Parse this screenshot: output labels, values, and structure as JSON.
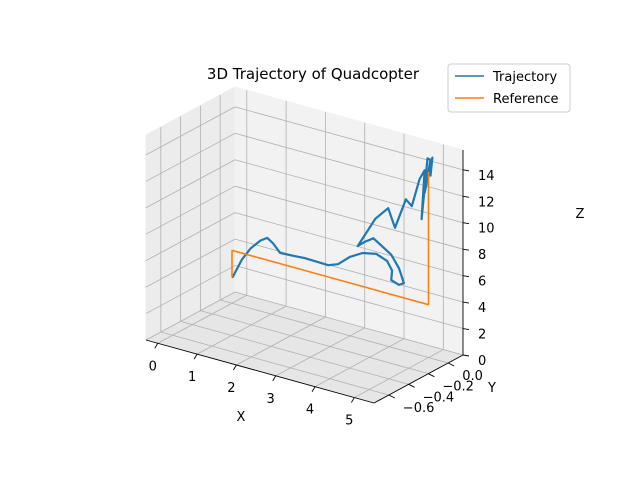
{
  "chart_data": {
    "type": "line",
    "projection": "3d",
    "title": "3D Trajectory of Quadcopter",
    "xlabel": "X",
    "ylabel": "Y",
    "zlabel": "Z",
    "xlim": [
      -0.3,
      5.5
    ],
    "ylim": [
      -0.75,
      0.15
    ],
    "zlim": [
      0,
      15.5
    ],
    "xticks": [
      0,
      1,
      2,
      3,
      4,
      5
    ],
    "xtick_labels": [
      "0",
      "1",
      "2",
      "3",
      "4",
      "5"
    ],
    "yticks": [
      -0.6,
      -0.4,
      -0.2,
      0.0
    ],
    "ytick_labels": [
      "−0.6",
      "−0.4",
      "−0.2",
      "0.0"
    ],
    "zticks": [
      0,
      2,
      4,
      6,
      8,
      10,
      12,
      14
    ],
    "ztick_labels": [
      "0",
      "2",
      "4",
      "6",
      "8",
      "10",
      "12",
      "14"
    ],
    "grid": true,
    "legend": "top-right",
    "series": [
      {
        "name": "Trajectory",
        "color": "#1f77b4",
        "points": [
          [
            0.02,
            0.0,
            2.0
          ],
          [
            0.25,
            0.0,
            3.5
          ],
          [
            0.5,
            -0.01,
            4.6
          ],
          [
            0.75,
            -0.01,
            5.4
          ],
          [
            0.95,
            -0.02,
            5.8
          ],
          [
            1.1,
            -0.02,
            5.5
          ],
          [
            1.3,
            -0.03,
            5.0
          ],
          [
            1.6,
            -0.04,
            5.1
          ],
          [
            2.0,
            -0.06,
            5.3
          ],
          [
            2.4,
            -0.08,
            5.4
          ],
          [
            2.7,
            -0.1,
            5.5
          ],
          [
            3.0,
            -0.12,
            5.9
          ],
          [
            3.3,
            -0.12,
            6.7
          ],
          [
            3.6,
            -0.11,
            7.2
          ],
          [
            3.9,
            -0.09,
            7.3
          ],
          [
            4.1,
            -0.06,
            6.8
          ],
          [
            4.15,
            -0.03,
            6.0
          ],
          [
            4.1,
            -0.02,
            5.2
          ],
          [
            4.3,
            -0.02,
            5.0
          ],
          [
            4.45,
            -0.03,
            5.3
          ],
          [
            4.4,
            -0.06,
            6.5
          ],
          [
            4.25,
            -0.08,
            7.5
          ],
          [
            3.9,
            -0.12,
            8.6
          ],
          [
            3.7,
            -0.13,
            8.2
          ],
          [
            3.55,
            -0.14,
            7.8
          ],
          [
            3.9,
            -0.1,
            10.0
          ],
          [
            4.2,
            -0.09,
            11.0
          ],
          [
            4.35,
            -0.08,
            9.6
          ],
          [
            4.55,
            -0.05,
            11.8
          ],
          [
            4.7,
            -0.05,
            11.4
          ],
          [
            4.85,
            -0.03,
            13.5
          ],
          [
            4.95,
            -0.02,
            14.2
          ],
          [
            4.9,
            -0.03,
            10.5
          ],
          [
            5.0,
            -0.01,
            15.1
          ],
          [
            5.05,
            0.0,
            15.0
          ],
          [
            4.95,
            -0.02,
            12.5
          ],
          [
            5.1,
            0.0,
            15.2
          ],
          [
            5.05,
            0.0,
            13.8
          ]
        ]
      },
      {
        "name": "Reference",
        "color": "#ff7f0e",
        "points": [
          [
            0.0,
            0.0,
            2.0
          ],
          [
            0.0,
            0.0,
            4.0
          ],
          [
            5.0,
            0.0,
            4.0
          ],
          [
            5.0,
            0.0,
            14.0
          ]
        ]
      }
    ]
  }
}
